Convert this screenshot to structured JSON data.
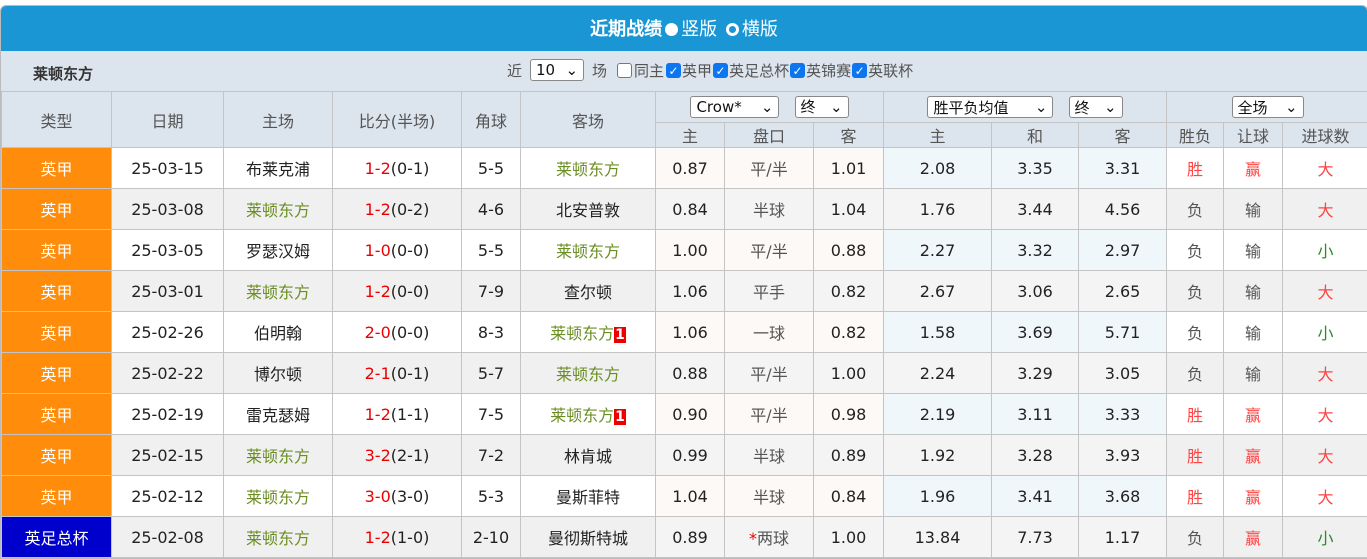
{
  "header": {
    "title": "近期战绩",
    "opt_vertical": "竖版",
    "opt_horizontal": "横版"
  },
  "filter": {
    "team": "莱顿东方",
    "near": "近",
    "count": "10",
    "games": "场",
    "same_home": "同主",
    "leagues": [
      {
        "label": "英甲",
        "checked": true
      },
      {
        "label": "英足总杯",
        "checked": true
      },
      {
        "label": "英锦赛",
        "checked": true
      },
      {
        "label": "英联杯",
        "checked": true
      }
    ]
  },
  "columns": {
    "type": "类型",
    "date": "日期",
    "home": "主场",
    "score": "比分(半场)",
    "corner": "角球",
    "away": "客场",
    "company": "Crow*",
    "odds_stage": "终",
    "avg": "胜平负均值",
    "avg_stage": "终",
    "scope": "全场",
    "ah_home": "主",
    "ah_line": "盘口",
    "ah_away": "客",
    "eu_home": "主",
    "eu_draw": "和",
    "eu_away": "客",
    "res": "胜负",
    "handicap": "让球",
    "goals": "进球数"
  },
  "colors": {
    "league_epl1": "#ff8c0a",
    "league_fa": "#0000cc",
    "header": "#1a96d4"
  },
  "rows": [
    {
      "type": "英甲",
      "color": "#ff8c0a",
      "date": "25-03-15",
      "home": "布莱克浦",
      "hf": false,
      "ft": "1-2",
      "ht": "(0-1)",
      "corner": "5-5",
      "away": "莱顿东方",
      "af": true,
      "badge": "",
      "o1": "0.87",
      "line": "平/半",
      "o2": "1.01",
      "e1": "2.08",
      "e2": "3.35",
      "e3": "3.31",
      "res": "胜",
      "hc": "赢",
      "goals": "大"
    },
    {
      "type": "英甲",
      "color": "#ff8c0a",
      "date": "25-03-08",
      "home": "莱顿东方",
      "hf": true,
      "ft": "1-2",
      "ht": "(0-2)",
      "corner": "4-6",
      "away": "北安普敦",
      "af": false,
      "badge": "",
      "o1": "0.84",
      "line": "半球",
      "o2": "1.04",
      "e1": "1.76",
      "e2": "3.44",
      "e3": "4.56",
      "res": "负",
      "hc": "输",
      "goals": "大"
    },
    {
      "type": "英甲",
      "color": "#ff8c0a",
      "date": "25-03-05",
      "home": "罗瑟汉姆",
      "hf": false,
      "ft": "1-0",
      "ht": "(0-0)",
      "corner": "5-5",
      "away": "莱顿东方",
      "af": true,
      "badge": "",
      "o1": "1.00",
      "line": "平/半",
      "o2": "0.88",
      "e1": "2.27",
      "e2": "3.32",
      "e3": "2.97",
      "res": "负",
      "hc": "输",
      "goals": "小"
    },
    {
      "type": "英甲",
      "color": "#ff8c0a",
      "date": "25-03-01",
      "home": "莱顿东方",
      "hf": true,
      "ft": "1-2",
      "ht": "(0-0)",
      "corner": "7-9",
      "away": "查尔顿",
      "af": false,
      "badge": "",
      "o1": "1.06",
      "line": "平手",
      "o2": "0.82",
      "e1": "2.67",
      "e2": "3.06",
      "e3": "2.65",
      "res": "负",
      "hc": "输",
      "goals": "大"
    },
    {
      "type": "英甲",
      "color": "#ff8c0a",
      "date": "25-02-26",
      "home": "伯明翰",
      "hf": false,
      "ft": "2-0",
      "ht": "(0-0)",
      "corner": "8-3",
      "away": "莱顿东方",
      "af": true,
      "badge": "1",
      "o1": "1.06",
      "line": "一球",
      "o2": "0.82",
      "e1": "1.58",
      "e2": "3.69",
      "e3": "5.71",
      "res": "负",
      "hc": "输",
      "goals": "小"
    },
    {
      "type": "英甲",
      "color": "#ff8c0a",
      "date": "25-02-22",
      "home": "博尔顿",
      "hf": false,
      "ft": "2-1",
      "ht": "(0-1)",
      "corner": "5-7",
      "away": "莱顿东方",
      "af": true,
      "badge": "",
      "o1": "0.88",
      "line": "平/半",
      "o2": "1.00",
      "e1": "2.24",
      "e2": "3.29",
      "e3": "3.05",
      "res": "负",
      "hc": "输",
      "goals": "大"
    },
    {
      "type": "英甲",
      "color": "#ff8c0a",
      "date": "25-02-19",
      "home": "雷克瑟姆",
      "hf": false,
      "ft": "1-2",
      "ht": "(1-1)",
      "corner": "7-5",
      "away": "莱顿东方",
      "af": true,
      "badge": "1",
      "o1": "0.90",
      "line": "平/半",
      "o2": "0.98",
      "e1": "2.19",
      "e2": "3.11",
      "e3": "3.33",
      "res": "胜",
      "hc": "赢",
      "goals": "大"
    },
    {
      "type": "英甲",
      "color": "#ff8c0a",
      "date": "25-02-15",
      "home": "莱顿东方",
      "hf": true,
      "ft": "3-2",
      "ht": "(2-1)",
      "corner": "7-2",
      "away": "林肯城",
      "af": false,
      "badge": "",
      "o1": "0.99",
      "line": "半球",
      "o2": "0.89",
      "e1": "1.92",
      "e2": "3.28",
      "e3": "3.93",
      "res": "胜",
      "hc": "赢",
      "goals": "大"
    },
    {
      "type": "英甲",
      "color": "#ff8c0a",
      "date": "25-02-12",
      "home": "莱顿东方",
      "hf": true,
      "ft": "3-0",
      "ht": "(3-0)",
      "corner": "5-3",
      "away": "曼斯菲特",
      "af": false,
      "badge": "",
      "o1": "1.04",
      "line": "半球",
      "o2": "0.84",
      "e1": "1.96",
      "e2": "3.41",
      "e3": "3.68",
      "res": "胜",
      "hc": "赢",
      "goals": "大"
    },
    {
      "type": "英足总杯",
      "color": "#0000cc",
      "date": "25-02-08",
      "home": "莱顿东方",
      "hf": true,
      "ft": "1-2",
      "ht": "(1-0)",
      "corner": "2-10",
      "away": "曼彻斯特城",
      "af": false,
      "badge": "",
      "line_mark": "*",
      "o1": "0.89",
      "line": "两球",
      "o2": "1.00",
      "e1": "13.84",
      "e2": "7.73",
      "e3": "1.17",
      "res": "负",
      "hc": "赢",
      "goals": "小"
    }
  ]
}
